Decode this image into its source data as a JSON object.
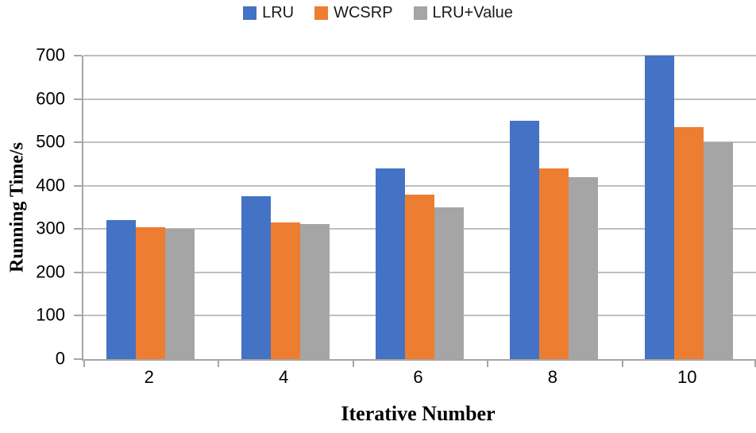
{
  "colors": {
    "series_blue": "#4472C4",
    "series_orange": "#ED7D31",
    "series_gray": "#A5A5A5",
    "gridline": "#BFBFBF",
    "axis_line": "#A6A6A6",
    "text": "#000000",
    "legend_text": "#1A1A1A"
  },
  "legend": {
    "position": "top-center",
    "items": [
      {
        "label": "LRU",
        "color": "#4472C4"
      },
      {
        "label": "WCSRP",
        "color": "#ED7D31"
      },
      {
        "label": "LRU+Value",
        "color": "#A5A5A5"
      }
    ]
  },
  "chart_data": {
    "type": "bar",
    "categories": [
      "2",
      "4",
      "6",
      "8",
      "10"
    ],
    "series": [
      {
        "name": "LRU",
        "color": "#4472C4",
        "values": [
          320,
          375,
          440,
          550,
          700
        ]
      },
      {
        "name": "WCSRP",
        "color": "#ED7D31",
        "values": [
          305,
          315,
          380,
          440,
          535
        ]
      },
      {
        "name": "LRU+Value",
        "color": "#A5A5A5",
        "values": [
          300,
          312,
          350,
          420,
          500
        ]
      }
    ],
    "title": "",
    "xlabel": "Iterative Number",
    "ylabel": "Running Time/s",
    "ylim": [
      0,
      700
    ],
    "yticks": [
      0,
      100,
      200,
      300,
      400,
      500,
      600,
      700
    ],
    "grid": true,
    "legend_position": "top"
  }
}
